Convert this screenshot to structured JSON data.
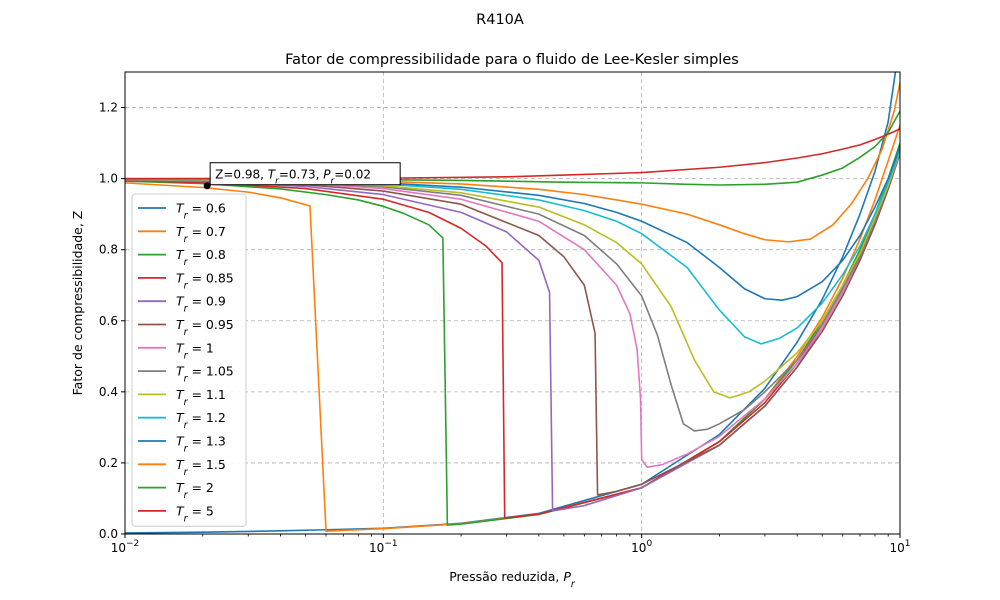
{
  "figure": {
    "suptitle": "R410A"
  },
  "chart_data": {
    "type": "line",
    "title": "Fator de compressibilidade para o fluido de Lee-Kesler simples",
    "xlabel": "Pressão reduzida, P_r",
    "ylabel": "Fator de compressibilidade, Z",
    "xscale": "log",
    "xlim": [
      0.01,
      10
    ],
    "ylim": [
      0,
      1.3
    ],
    "x_ticks": [
      0.01,
      0.1,
      1,
      10
    ],
    "x_tick_labels": [
      "10^-2",
      "10^-1",
      "10^0",
      "10^1"
    ],
    "y_ticks": [
      0.0,
      0.2,
      0.4,
      0.6,
      0.8,
      1.0,
      1.2
    ],
    "y_tick_labels": [
      "0.0",
      "0.2",
      "0.4",
      "0.6",
      "0.8",
      "1.0",
      "1.2"
    ],
    "grid": true,
    "legend_position": "lower-left",
    "annotation": {
      "text": "Z=0.98, T_r=0.73, P_r=0.02",
      "x": 0.0208,
      "y": 0.98
    },
    "series": [
      {
        "name": "T_r = 0.6",
        "color": "#1f77b4",
        "points": [
          [
            0.01,
            0.003
          ],
          [
            0.02,
            0.005
          ],
          [
            0.04,
            0.009
          ],
          [
            0.06,
            0.012
          ],
          [
            0.1,
            0.016
          ],
          [
            0.2,
            0.03
          ],
          [
            0.4,
            0.058
          ],
          [
            1,
            0.14
          ],
          [
            2,
            0.28
          ],
          [
            3,
            0.41
          ],
          [
            4,
            0.54
          ],
          [
            5,
            0.66
          ],
          [
            6,
            0.78
          ],
          [
            7,
            0.9
          ],
          [
            8,
            1.02
          ],
          [
            9,
            1.16
          ],
          [
            9.6,
            1.3
          ]
        ]
      },
      {
        "name": "T_r = 0.7",
        "color": "#ff7f0e",
        "points": [
          [
            0.01,
            0.988
          ],
          [
            0.02,
            0.975
          ],
          [
            0.03,
            0.962
          ],
          [
            0.04,
            0.946
          ],
          [
            0.052,
            0.923
          ],
          [
            0.06,
            0.008
          ],
          [
            0.1,
            0.015
          ],
          [
            0.2,
            0.029
          ],
          [
            0.4,
            0.056
          ],
          [
            1,
            0.13
          ],
          [
            2,
            0.26
          ],
          [
            3,
            0.38
          ],
          [
            4,
            0.5
          ],
          [
            5,
            0.61
          ],
          [
            6,
            0.72
          ],
          [
            7,
            0.83
          ],
          [
            8,
            0.94
          ],
          [
            9,
            1.05
          ],
          [
            10,
            1.15
          ]
        ]
      },
      {
        "name": "T_r = 0.8",
        "color": "#2ca02c",
        "points": [
          [
            0.01,
            0.993
          ],
          [
            0.02,
            0.986
          ],
          [
            0.04,
            0.971
          ],
          [
            0.06,
            0.955
          ],
          [
            0.08,
            0.94
          ],
          [
            0.1,
            0.922
          ],
          [
            0.12,
            0.902
          ],
          [
            0.15,
            0.87
          ],
          [
            0.17,
            0.833
          ],
          [
            0.177,
            0.025
          ],
          [
            0.2,
            0.028
          ],
          [
            0.4,
            0.055
          ],
          [
            1,
            0.13
          ],
          [
            2,
            0.26
          ],
          [
            3,
            0.38
          ],
          [
            4,
            0.49
          ],
          [
            5,
            0.6
          ],
          [
            6,
            0.7
          ],
          [
            7,
            0.8
          ],
          [
            8,
            0.9
          ],
          [
            9,
            1.0
          ],
          [
            10,
            1.1
          ]
        ]
      },
      {
        "name": "T_r = 0.85",
        "color": "#d62728",
        "points": [
          [
            0.01,
            0.995
          ],
          [
            0.02,
            0.989
          ],
          [
            0.05,
            0.972
          ],
          [
            0.1,
            0.942
          ],
          [
            0.15,
            0.905
          ],
          [
            0.2,
            0.86
          ],
          [
            0.25,
            0.81
          ],
          [
            0.288,
            0.763
          ],
          [
            0.295,
            0.045
          ],
          [
            0.4,
            0.056
          ],
          [
            1,
            0.13
          ],
          [
            2,
            0.26
          ],
          [
            3,
            0.37
          ],
          [
            4,
            0.48
          ],
          [
            5,
            0.59
          ],
          [
            6,
            0.69
          ],
          [
            7,
            0.79
          ],
          [
            8,
            0.89
          ],
          [
            9,
            0.99
          ],
          [
            10,
            1.08
          ]
        ]
      },
      {
        "name": "T_r = 0.9",
        "color": "#9467bd",
        "points": [
          [
            0.01,
            0.996
          ],
          [
            0.02,
            0.992
          ],
          [
            0.05,
            0.978
          ],
          [
            0.1,
            0.955
          ],
          [
            0.2,
            0.905
          ],
          [
            0.3,
            0.85
          ],
          [
            0.4,
            0.77
          ],
          [
            0.44,
            0.68
          ],
          [
            0.452,
            0.065
          ],
          [
            0.6,
            0.08
          ],
          [
            1,
            0.13
          ],
          [
            2,
            0.25
          ],
          [
            3,
            0.36
          ],
          [
            4,
            0.47
          ],
          [
            5,
            0.58
          ],
          [
            6,
            0.68
          ],
          [
            7,
            0.78
          ],
          [
            8,
            0.88
          ],
          [
            9,
            0.98
          ],
          [
            10,
            1.08
          ]
        ]
      },
      {
        "name": "T_r = 0.95",
        "color": "#8c564b",
        "points": [
          [
            0.01,
            0.997
          ],
          [
            0.02,
            0.993
          ],
          [
            0.05,
            0.983
          ],
          [
            0.1,
            0.965
          ],
          [
            0.2,
            0.928
          ],
          [
            0.4,
            0.84
          ],
          [
            0.5,
            0.78
          ],
          [
            0.6,
            0.7
          ],
          [
            0.66,
            0.565
          ],
          [
            0.675,
            0.11
          ],
          [
            0.8,
            0.12
          ],
          [
            1,
            0.14
          ],
          [
            2,
            0.25
          ],
          [
            3,
            0.36
          ],
          [
            4,
            0.47
          ],
          [
            5,
            0.57
          ],
          [
            6,
            0.67
          ],
          [
            7,
            0.77
          ],
          [
            8,
            0.87
          ],
          [
            9,
            0.97
          ],
          [
            10,
            1.07
          ]
        ]
      },
      {
        "name": "T_r = 1",
        "color": "#e377c2",
        "points": [
          [
            0.01,
            0.998
          ],
          [
            0.02,
            0.994
          ],
          [
            0.05,
            0.986
          ],
          [
            0.1,
            0.972
          ],
          [
            0.2,
            0.942
          ],
          [
            0.4,
            0.88
          ],
          [
            0.6,
            0.8
          ],
          [
            0.8,
            0.7
          ],
          [
            0.9,
            0.62
          ],
          [
            0.96,
            0.52
          ],
          [
            0.99,
            0.38
          ],
          [
            1.0,
            0.21
          ],
          [
            1.05,
            0.188
          ],
          [
            1.2,
            0.195
          ],
          [
            1.5,
            0.225
          ],
          [
            2,
            0.275
          ],
          [
            3,
            0.38
          ],
          [
            4,
            0.48
          ],
          [
            5,
            0.58
          ],
          [
            6,
            0.68
          ],
          [
            7,
            0.78
          ],
          [
            8,
            0.88
          ],
          [
            9,
            0.98
          ],
          [
            10,
            1.07
          ]
        ]
      },
      {
        "name": "T_r = 1.05",
        "color": "#7f7f7f",
        "points": [
          [
            0.01,
            0.998
          ],
          [
            0.02,
            0.995
          ],
          [
            0.05,
            0.988
          ],
          [
            0.1,
            0.977
          ],
          [
            0.2,
            0.953
          ],
          [
            0.4,
            0.9
          ],
          [
            0.6,
            0.84
          ],
          [
            0.8,
            0.76
          ],
          [
            1,
            0.67
          ],
          [
            1.15,
            0.56
          ],
          [
            1.3,
            0.42
          ],
          [
            1.45,
            0.31
          ],
          [
            1.6,
            0.29
          ],
          [
            1.8,
            0.295
          ],
          [
            2,
            0.31
          ],
          [
            2.5,
            0.35
          ],
          [
            3,
            0.4
          ],
          [
            4,
            0.49
          ],
          [
            5,
            0.59
          ],
          [
            6,
            0.69
          ],
          [
            7,
            0.78
          ],
          [
            8,
            0.88
          ],
          [
            9,
            0.98
          ],
          [
            10,
            1.07
          ]
        ]
      },
      {
        "name": "T_r = 1.1",
        "color": "#bcbd22",
        "points": [
          [
            0.01,
            0.998
          ],
          [
            0.02,
            0.996
          ],
          [
            0.05,
            0.99
          ],
          [
            0.1,
            0.98
          ],
          [
            0.2,
            0.96
          ],
          [
            0.4,
            0.92
          ],
          [
            0.6,
            0.87
          ],
          [
            0.8,
            0.82
          ],
          [
            1,
            0.76
          ],
          [
            1.3,
            0.64
          ],
          [
            1.6,
            0.49
          ],
          [
            1.9,
            0.4
          ],
          [
            2.2,
            0.383
          ],
          [
            2.6,
            0.4
          ],
          [
            3,
            0.43
          ],
          [
            4,
            0.51
          ],
          [
            5,
            0.6
          ],
          [
            6,
            0.7
          ],
          [
            7,
            0.79
          ],
          [
            8,
            0.89
          ],
          [
            9,
            0.98
          ],
          [
            10,
            1.08
          ]
        ]
      },
      {
        "name": "T_r = 1.2",
        "color": "#17becf",
        "points": [
          [
            0.01,
            0.999
          ],
          [
            0.02,
            0.997
          ],
          [
            0.05,
            0.992
          ],
          [
            0.1,
            0.985
          ],
          [
            0.2,
            0.97
          ],
          [
            0.4,
            0.94
          ],
          [
            0.6,
            0.91
          ],
          [
            0.8,
            0.88
          ],
          [
            1,
            0.845
          ],
          [
            1.5,
            0.75
          ],
          [
            2,
            0.63
          ],
          [
            2.5,
            0.555
          ],
          [
            2.9,
            0.535
          ],
          [
            3.4,
            0.55
          ],
          [
            4,
            0.58
          ],
          [
            5,
            0.65
          ],
          [
            6,
            0.73
          ],
          [
            7,
            0.81
          ],
          [
            8,
            0.9
          ],
          [
            9,
            0.99
          ],
          [
            10,
            1.08
          ]
        ]
      },
      {
        "name": "T_r = 1.3",
        "color": "#1f77b4",
        "points": [
          [
            0.01,
            0.999
          ],
          [
            0.02,
            0.998
          ],
          [
            0.05,
            0.994
          ],
          [
            0.1,
            0.988
          ],
          [
            0.2,
            0.976
          ],
          [
            0.4,
            0.953
          ],
          [
            0.6,
            0.93
          ],
          [
            0.8,
            0.905
          ],
          [
            1,
            0.88
          ],
          [
            1.5,
            0.82
          ],
          [
            2,
            0.75
          ],
          [
            2.5,
            0.69
          ],
          [
            3,
            0.662
          ],
          [
            3.5,
            0.658
          ],
          [
            4,
            0.668
          ],
          [
            5,
            0.71
          ],
          [
            6,
            0.77
          ],
          [
            7,
            0.84
          ],
          [
            8,
            0.92
          ],
          [
            9,
            1.0
          ],
          [
            10,
            1.09
          ]
        ]
      },
      {
        "name": "T_r = 1.5",
        "color": "#ff7f0e",
        "points": [
          [
            0.01,
            0.999
          ],
          [
            0.02,
            0.998
          ],
          [
            0.05,
            0.996
          ],
          [
            0.1,
            0.992
          ],
          [
            0.2,
            0.985
          ],
          [
            0.4,
            0.97
          ],
          [
            0.6,
            0.955
          ],
          [
            0.8,
            0.94
          ],
          [
            1,
            0.928
          ],
          [
            1.5,
            0.9
          ],
          [
            2,
            0.87
          ],
          [
            2.5,
            0.845
          ],
          [
            3,
            0.828
          ],
          [
            3.7,
            0.822
          ],
          [
            4.5,
            0.83
          ],
          [
            5.5,
            0.87
          ],
          [
            6.5,
            0.93
          ],
          [
            7.5,
            1.0
          ],
          [
            8.5,
            1.08
          ],
          [
            9.5,
            1.19
          ],
          [
            10,
            1.27
          ]
        ]
      },
      {
        "name": "T_r = 2",
        "color": "#2ca02c",
        "points": [
          [
            0.01,
            1.0
          ],
          [
            0.05,
            0.999
          ],
          [
            0.1,
            0.997
          ],
          [
            0.2,
            0.995
          ],
          [
            0.5,
            0.99
          ],
          [
            1,
            0.988
          ],
          [
            1.5,
            0.984
          ],
          [
            2,
            0.982
          ],
          [
            3,
            0.984
          ],
          [
            4,
            0.99
          ],
          [
            5,
            1.01
          ],
          [
            6,
            1.03
          ],
          [
            7,
            1.06
          ],
          [
            8,
            1.09
          ],
          [
            9,
            1.13
          ],
          [
            10,
            1.19
          ]
        ]
      },
      {
        "name": "T_r = 5",
        "color": "#d62728",
        "points": [
          [
            0.01,
            1.0
          ],
          [
            0.1,
            1.001
          ],
          [
            0.3,
            1.005
          ],
          [
            0.5,
            1.01
          ],
          [
            1,
            1.017
          ],
          [
            2,
            1.032
          ],
          [
            3,
            1.045
          ],
          [
            4,
            1.058
          ],
          [
            5,
            1.07
          ],
          [
            6,
            1.083
          ],
          [
            7,
            1.095
          ],
          [
            8,
            1.11
          ],
          [
            9,
            1.125
          ],
          [
            10,
            1.14
          ]
        ]
      }
    ]
  }
}
